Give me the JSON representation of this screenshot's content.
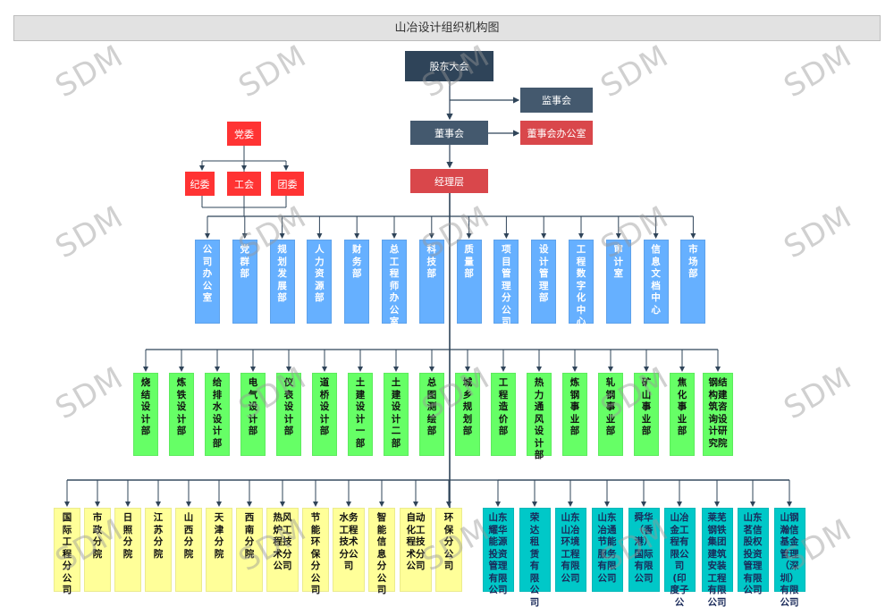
{
  "title": "山冶设计组织机构图",
  "watermark": "SDM",
  "colors": {
    "shareholders": "#2f4459",
    "board": "#44596e",
    "management_red": "#d9474b",
    "party_red": "#ff3333",
    "dept_blue": "#66b0ff",
    "design_green": "#66ff66",
    "branch_yellow": "#ffff99",
    "subsidiary_cyan": "#00c8c8",
    "line": "#2f4459"
  },
  "top": {
    "shareholders": "股东大会",
    "supervisors": "监事会",
    "board": "董事会",
    "board_office": "董事会办公室",
    "management": "经理层"
  },
  "party": {
    "committee": "党委",
    "discipline": "纪委",
    "union": "工会",
    "youth": "团委"
  },
  "functional_departments": [
    "公司办公室",
    "党群部",
    "规划发展部",
    "人力资源部",
    "财务部",
    "总工程师办公室",
    "科技部",
    "质量部",
    "项目管理分公司",
    "设计管理部",
    "工程数字化中心",
    "审计室",
    "信息文档中心",
    "市场部"
  ],
  "design_departments": [
    "烧结设计部",
    "炼铁设计部",
    "给排水设计部",
    "电气设计部",
    "仪表设计部",
    "道桥设计部",
    "土建设计一部",
    "土建设计二部",
    "总图测绘部",
    "城乡规划部",
    "工程造价部",
    "热力通风设计部",
    "炼钢事业部",
    "轧钢事业部",
    "矿山事业部",
    "焦化事业部",
    "钢结构建筑咨询设计研究院"
  ],
  "branches": [
    "国际工程分公司",
    "市政分院",
    "日照分院",
    "江苏分院",
    "山西分院",
    "天津分院",
    "西南分院",
    "热风炉工程技术分公司",
    "节能环保分公司",
    "水务工程技术分公司",
    "智能信息分公司",
    "自动化工程技术分公司",
    "环保分公司"
  ],
  "subsidiaries": [
    "山东耀华能源投资管理有限公司",
    "荣达租赁有限公司",
    "山东山冶环境工程有限公司",
    "山东冶通节能服务有限公司",
    "舜华（香港）国际有限公司",
    "山冶金工程有限公司(印度子公司)",
    "莱芜钢铁集团建筑安装工程有限公司",
    "山东茗信股权投资管理有限公司",
    "山钢瀚信基金管理（深圳）有限公司"
  ]
}
